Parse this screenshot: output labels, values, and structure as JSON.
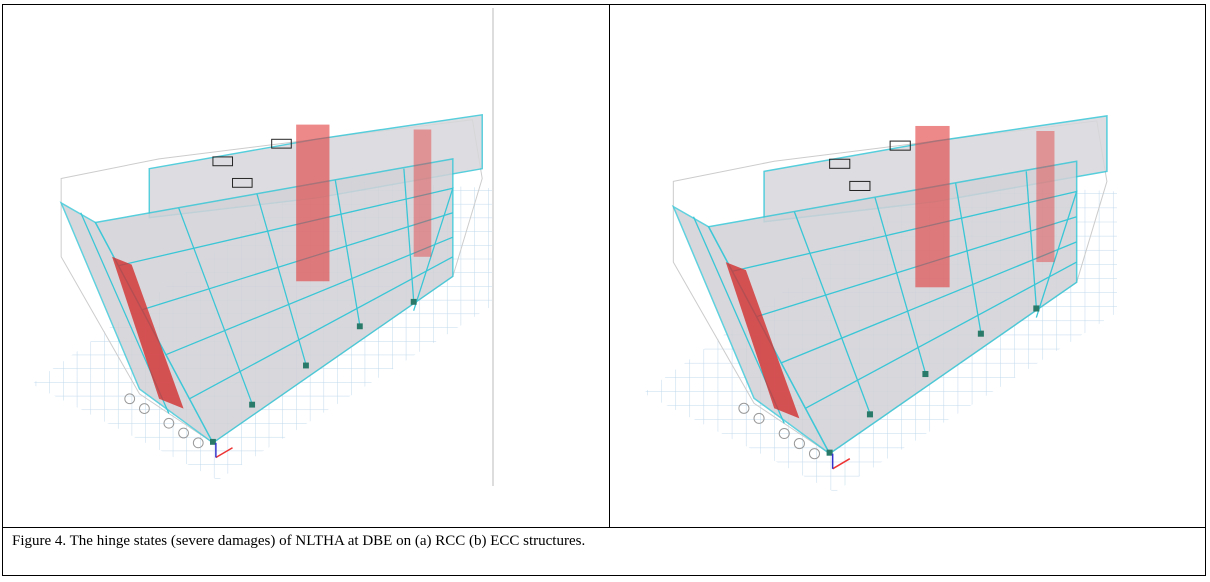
{
  "caption": "Figure 4. The hinge states (severe damages) of NLTHA at DBE on (a) RCC (b) ECC structures."
}
